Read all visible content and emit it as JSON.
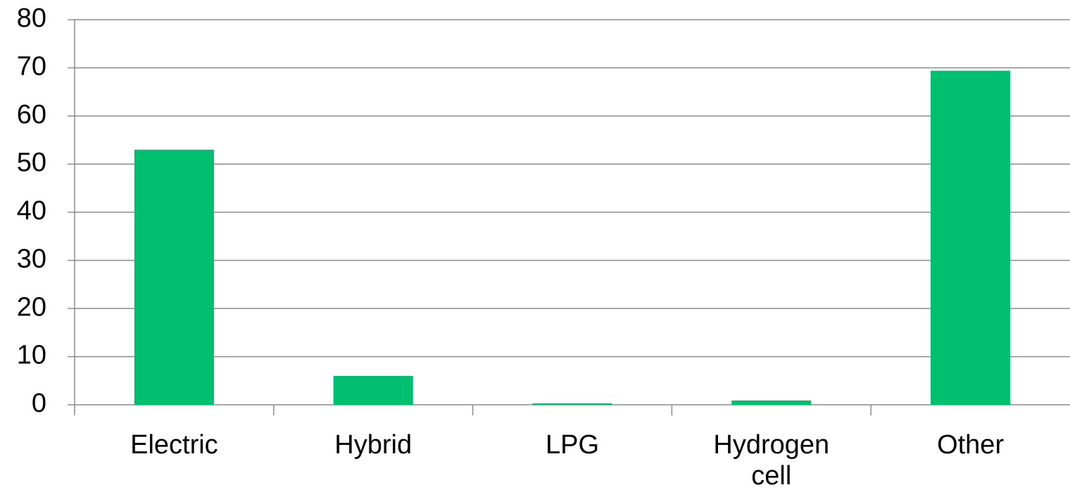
{
  "chart_data": {
    "type": "bar",
    "categories": [
      "Electric",
      "Hybrid",
      "LPG",
      "Hydrogen cell",
      "Other"
    ],
    "values": [
      53,
      6,
      0.3,
      0.9,
      69.4
    ],
    "color": "#00bf6f",
    "ylim": [
      0,
      80
    ],
    "yticks": [
      0,
      10,
      20,
      30,
      40,
      50,
      60,
      70,
      80
    ],
    "grid": true
  }
}
